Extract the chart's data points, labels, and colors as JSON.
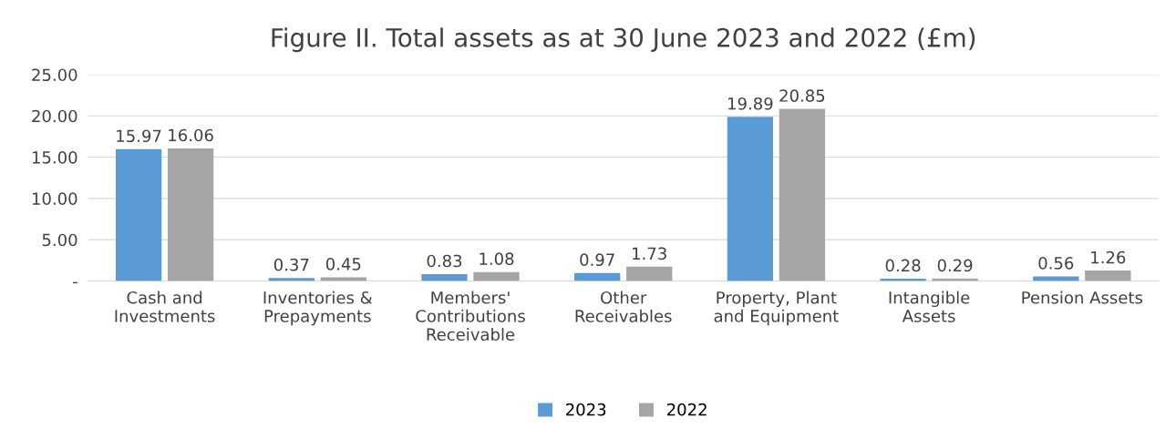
{
  "chart_data": {
    "type": "bar",
    "title": "Figure II. Total assets as at 30 June 2023 and 2022 (£m)",
    "categories": [
      "Cash and\nInvestments",
      "Inventories &\nPrepayments",
      "Members'\nContributions\nReceivable",
      "Other\nReceivables",
      "Property, Plant\nand Equipment",
      "Intangible\nAssets",
      "Pension Assets"
    ],
    "series": [
      {
        "name": "2023",
        "color": "#5b9bd5",
        "values": [
          15.97,
          0.37,
          0.83,
          0.97,
          19.89,
          0.28,
          0.56
        ]
      },
      {
        "name": "2022",
        "color": "#a5a5a5",
        "values": [
          16.06,
          0.45,
          1.08,
          1.73,
          20.85,
          0.29,
          1.26
        ]
      }
    ],
    "ylim": [
      0,
      25
    ],
    "yticks": [
      {
        "value": 0,
        "label": "-"
      },
      {
        "value": 5,
        "label": "5.00"
      },
      {
        "value": 10,
        "label": "10.00"
      },
      {
        "value": 15,
        "label": "15.00"
      },
      {
        "value": 20,
        "label": "20.00"
      },
      {
        "value": 25,
        "label": "25.00"
      }
    ],
    "grid": "y",
    "legend": "bottom",
    "data_labels": true
  }
}
